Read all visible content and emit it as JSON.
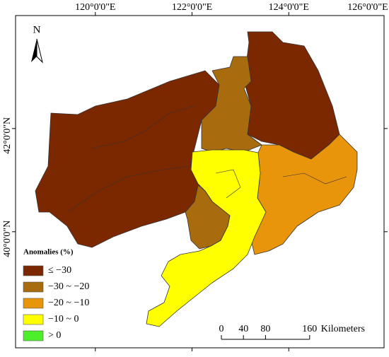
{
  "map": {
    "north_label": "N",
    "lon_range": [
      118.35,
      126.0
    ],
    "lat_range": [
      37.75,
      44.19
    ],
    "lon_ticks": [
      {
        "value": 120,
        "label": "120°0'0\"E"
      },
      {
        "value": 122,
        "label": "122°0'0\"E"
      },
      {
        "value": 124,
        "label": "124°0'0\"E"
      },
      {
        "value": 126,
        "label": "126°0'0\"E"
      }
    ],
    "lat_ticks": [
      {
        "value": 42,
        "label": "42°0'0\"N"
      },
      {
        "value": 40,
        "label": "40°0'0\"N"
      }
    ],
    "legend": {
      "title": "Anomalies (%)",
      "items": [
        {
          "label": "≤ −30",
          "color": "#7b2800"
        },
        {
          "label": "−30 ~ −20",
          "color": "#a86b0e"
        },
        {
          "label": "−20 ~ −10",
          "color": "#e8950c"
        },
        {
          "label": "−10 ~ 0",
          "color": "#ffff00"
        },
        {
          "label": "> 0",
          "color": "#4cef2a"
        }
      ]
    },
    "scale_bar": {
      "ticks": [
        0,
        40,
        80,
        160
      ],
      "unit": "Kilometers"
    }
  }
}
